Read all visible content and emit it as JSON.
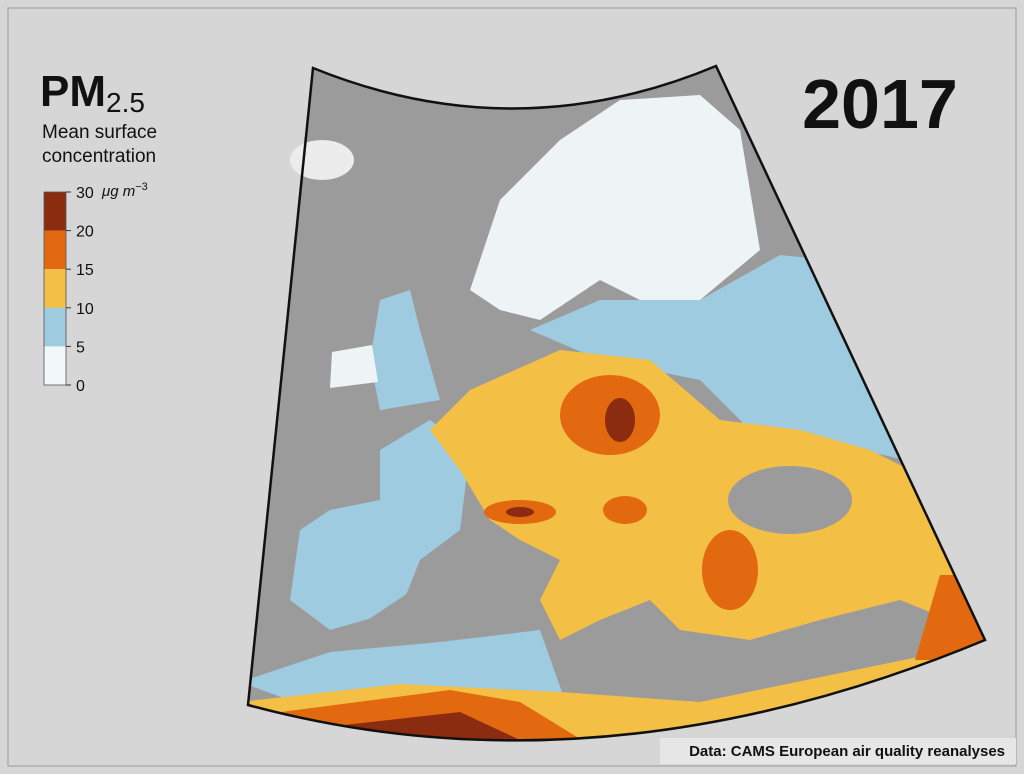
{
  "title": "PM",
  "title_subscript": "2.5",
  "subtitle": [
    "Mean surface",
    "concentration"
  ],
  "legend": {
    "ticks": [
      30,
      20,
      15,
      10,
      5,
      0
    ],
    "unit": "μg m",
    "unit_power": "−3",
    "colors": [
      "#8b2b10",
      "#e2690f",
      "#f4bf45",
      "#9ecbe0",
      "#f2f7f9"
    ]
  },
  "year": "2017",
  "source": "Data: CAMS European air quality reanalyses"
}
